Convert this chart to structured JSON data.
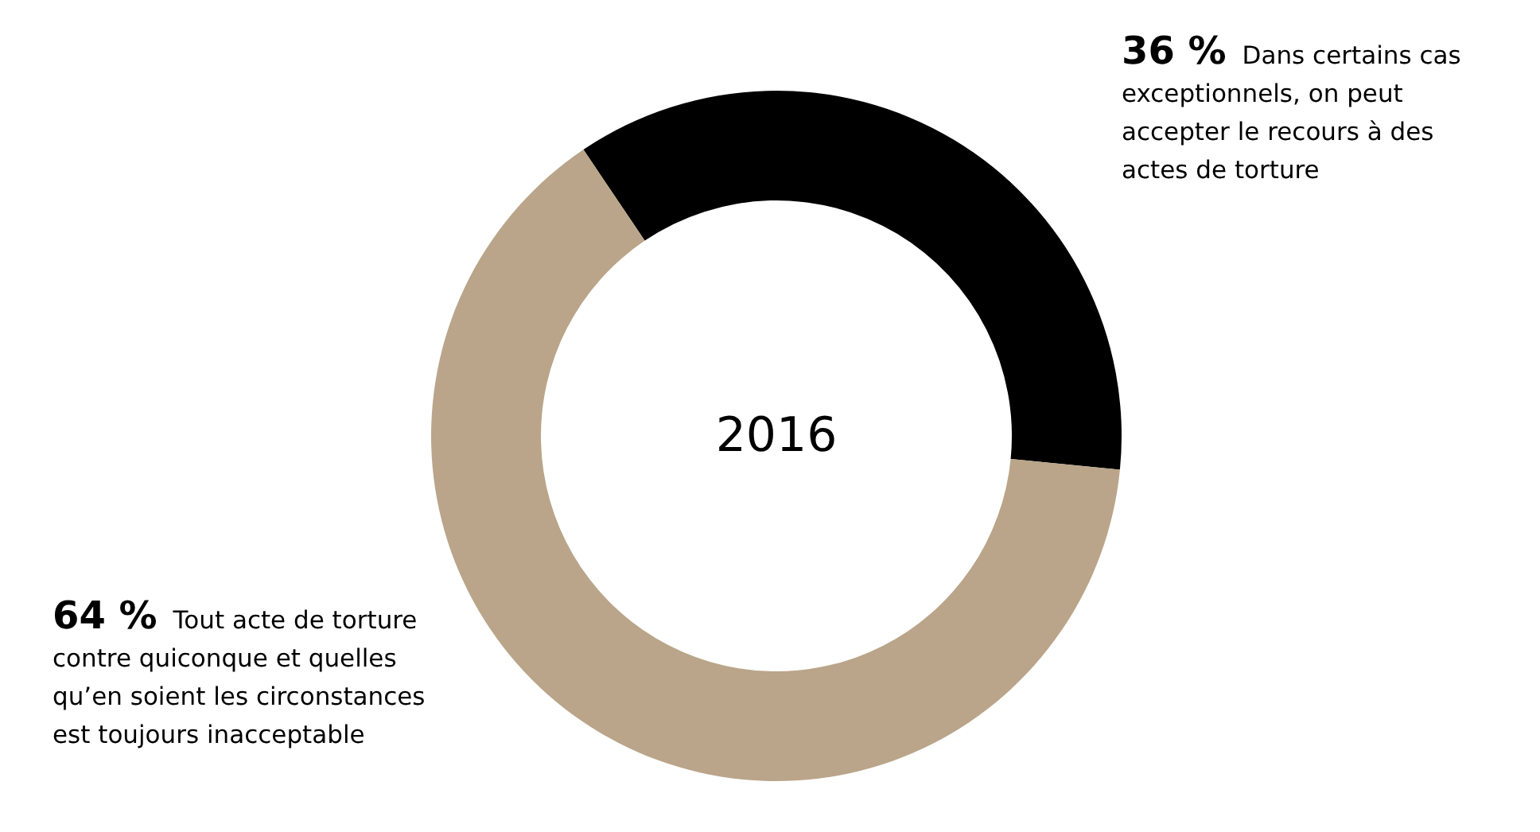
{
  "chart_data": {
    "type": "donut",
    "title": "2016",
    "categories": [
      "Dans certains cas exceptionnels, on peut accepter le recours à des actes de torture",
      "Tout acte de torture contre quiconque et quelles qu’en soient les circonstances est toujours inacceptable"
    ],
    "values": [
      36,
      64
    ],
    "colors": [
      "#000000",
      "#baa58a"
    ],
    "value_labels": [
      "36 %",
      "64 %"
    ],
    "legend": false
  }
}
